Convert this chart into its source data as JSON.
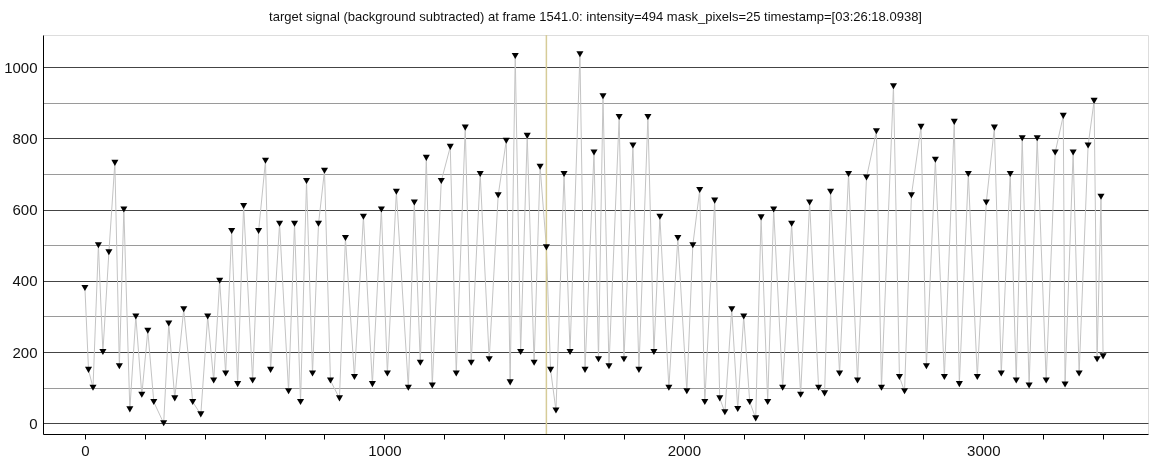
{
  "chart_data": {
    "type": "line",
    "title": "target signal (background subtracted) at frame 1541.0: intensity=494 mask_pixels=25 timestamp=[03:26:18.0938]",
    "x": [
      0,
      12,
      27,
      45,
      60,
      80,
      100,
      115,
      130,
      150,
      170,
      190,
      210,
      230,
      263,
      280,
      300,
      330,
      360,
      387,
      410,
      430,
      450,
      470,
      490,
      510,
      530,
      560,
      580,
      603,
      620,
      650,
      680,
      700,
      720,
      740,
      760,
      780,
      800,
      820,
      850,
      870,
      900,
      930,
      960,
      990,
      1010,
      1040,
      1080,
      1100,
      1120,
      1140,
      1160,
      1190,
      1220,
      1240,
      1270,
      1290,
      1320,
      1350,
      1380,
      1407,
      1420,
      1437,
      1455,
      1477,
      1500,
      1520,
      1541,
      1555,
      1573,
      1600,
      1620,
      1653,
      1670,
      1700,
      1715,
      1730,
      1750,
      1784,
      1800,
      1830,
      1850,
      1880,
      1900,
      1920,
      1950,
      1980,
      2010,
      2030,
      2053,
      2070,
      2103,
      2120,
      2137,
      2160,
      2180,
      2200,
      2220,
      2240,
      2258,
      2280,
      2300,
      2330,
      2360,
      2390,
      2420,
      2450,
      2470,
      2490,
      2520,
      2550,
      2580,
      2610,
      2643,
      2660,
      2700,
      2720,
      2737,
      2760,
      2792,
      2810,
      2840,
      2870,
      2903,
      2920,
      2950,
      2980,
      3010,
      3037,
      3060,
      3090,
      3110,
      3130,
      3153,
      3180,
      3210,
      3240,
      3267,
      3273,
      3300,
      3320,
      3350,
      3370,
      3380,
      3393,
      3400
    ],
    "series": [
      {
        "type": "line",
        "color": "#c4c4c4",
        "marker": "none",
        "line_style": "solid",
        "values": [
          380,
          150,
          100,
          500,
          200,
          480,
          731,
          160,
          600,
          39,
          300,
          80,
          260,
          60,
          0,
          280,
          70,
          320,
          60,
          25,
          300,
          120,
          400,
          140,
          540,
          110,
          610,
          120,
          540,
          737,
          150,
          560,
          90,
          560,
          60,
          680,
          140,
          560,
          709,
          120,
          70,
          520,
          130,
          580,
          110,
          600,
          140,
          650,
          100,
          620,
          170,
          745,
          106,
          680,
          776,
          140,
          830,
          170,
          700,
          180,
          640,
          793,
          115,
          1031,
          200,
          807,
          170,
          720,
          494,
          150,
          36,
          700,
          200,
          1036,
          150,
          760,
          180,
          918,
          160,
          860,
          180,
          780,
          150,
          860,
          200,
          580,
          100,
          520,
          90,
          500,
          655,
          60,
          625,
          70,
          31,
          320,
          40,
          300,
          60,
          14,
          578,
          60,
          600,
          100,
          560,
          80,
          620,
          100,
          84,
          650,
          140,
          700,
          120,
          690,
          820,
          100,
          946,
          130,
          90,
          640,
          832,
          160,
          740,
          130,
          846,
          110,
          700,
          130,
          620,
          830,
          140,
          700,
          120,
          800,
          106,
          800,
          120,
          760,
          863,
          109,
          760,
          140,
          780,
          905,
          180,
          636,
          188
        ]
      },
      {
        "type": "scatter",
        "color": "#000000",
        "marker": "triangle",
        "values": [
          380,
          150,
          100,
          500,
          200,
          480,
          731,
          160,
          600,
          39,
          300,
          80,
          260,
          60,
          0,
          280,
          70,
          320,
          60,
          25,
          300,
          120,
          400,
          140,
          540,
          110,
          610,
          120,
          540,
          737,
          150,
          560,
          90,
          560,
          60,
          680,
          140,
          560,
          709,
          120,
          70,
          520,
          130,
          580,
          110,
          600,
          140,
          650,
          100,
          620,
          170,
          745,
          106,
          680,
          776,
          140,
          830,
          170,
          700,
          180,
          640,
          793,
          115,
          1031,
          200,
          807,
          170,
          720,
          494,
          150,
          36,
          700,
          200,
          1036,
          150,
          760,
          180,
          918,
          160,
          860,
          180,
          780,
          150,
          860,
          200,
          580,
          100,
          520,
          90,
          500,
          655,
          60,
          625,
          70,
          31,
          320,
          40,
          300,
          60,
          14,
          578,
          60,
          600,
          100,
          560,
          80,
          620,
          100,
          84,
          650,
          140,
          700,
          120,
          690,
          820,
          100,
          946,
          130,
          90,
          640,
          832,
          160,
          740,
          130,
          846,
          110,
          700,
          130,
          620,
          830,
          140,
          700,
          120,
          800,
          106,
          800,
          120,
          760,
          863,
          109,
          760,
          140,
          780,
          905,
          180,
          636,
          188
        ]
      }
    ],
    "xlim": [
      -140,
      3550
    ],
    "xticks": [
      0,
      {
        "value": 200,
        "label": null
      },
      {
        "value": 400,
        "label": null
      },
      {
        "value": 600,
        "label": null
      },
      {
        "value": 800,
        "label": null
      },
      1000,
      {
        "value": 1200,
        "label": null
      },
      {
        "value": 1400,
        "label": null
      },
      {
        "value": 1600,
        "label": null
      },
      {
        "value": 1800,
        "label": null
      },
      2000,
      {
        "value": 2200,
        "label": null
      },
      {
        "value": 2400,
        "label": null
      },
      {
        "value": 2600,
        "label": null
      },
      {
        "value": 2800,
        "label": null
      },
      3000,
      {
        "value": 3200,
        "label": null
      },
      {
        "value": 3400,
        "label": null
      }
    ],
    "ylim": [
      -30,
      1090
    ],
    "yticks": [
      0,
      {
        "value": 100,
        "label": null
      },
      200,
      {
        "value": 300,
        "label": null
      },
      400,
      {
        "value": 500,
        "label": null
      },
      600,
      {
        "value": 700,
        "label": null
      },
      800,
      {
        "value": 900,
        "label": null
      },
      1000
    ],
    "grid": "y",
    "ref_lines": [
      {
        "axis": "x",
        "value": 1541,
        "color": "#d6cc98"
      }
    ]
  }
}
